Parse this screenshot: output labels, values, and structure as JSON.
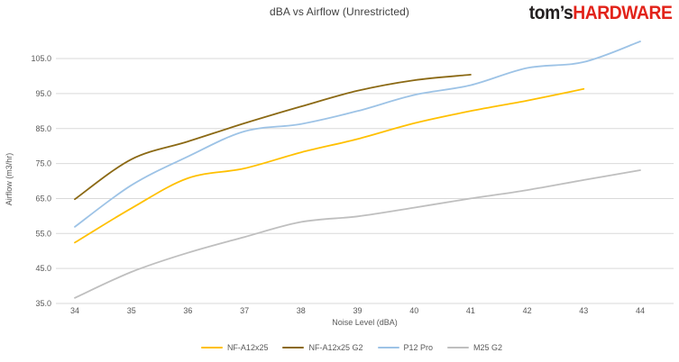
{
  "header": {
    "logo": {
      "prefix": "tom’s",
      "suffix": "HARDWARE",
      "prefix_color": "#231f20",
      "suffix_color": "#e2231a"
    }
  },
  "chart_data": {
    "type": "line",
    "title": "dBA vs Airflow (Unrestricted)",
    "xlabel": "Noise Level (dBA)",
    "ylabel": "Airflow (m3/hr)",
    "x": [
      34,
      35,
      36,
      37,
      38,
      39,
      40,
      41,
      42,
      43,
      44
    ],
    "xtick_labels": [
      "34",
      "35",
      "36",
      "37",
      "38",
      "39",
      "40",
      "41",
      "42",
      "43",
      "44"
    ],
    "xlim": [
      34,
      44
    ],
    "ylim": [
      35,
      110
    ],
    "yticks": [
      35,
      45,
      55,
      65,
      75,
      85,
      95,
      105
    ],
    "ytick_labels": [
      "35.0",
      "45.0",
      "55.0",
      "65.0",
      "75.0",
      "85.0",
      "95.0",
      "105.0"
    ],
    "grid": "horizontal-only",
    "legend_position": "bottom-center",
    "style": "smooth lines, no markers, white background, light gray gridlines",
    "grid_color": "#d9d9d9",
    "axis_text_color": "#595959",
    "title_color": "#404040",
    "series": [
      {
        "name": "NF-A12x25",
        "color": "#ffc000",
        "values": [
          52.4,
          62.2,
          70.8,
          73.6,
          78.2,
          82.0,
          86.5,
          90.0,
          93.0,
          96.3,
          null
        ]
      },
      {
        "name": "NF-A12x25 G2",
        "color": "#8b6914",
        "values": [
          64.8,
          76.2,
          81.3,
          86.5,
          91.3,
          95.8,
          98.8,
          100.4,
          null,
          null,
          null
        ]
      },
      {
        "name": "P12 Pro",
        "color": "#9dc3e6",
        "values": [
          56.9,
          68.8,
          77.0,
          84.2,
          86.3,
          90.0,
          94.6,
          97.4,
          102.3,
          104.0,
          109.9
        ]
      },
      {
        "name": "M25 G2",
        "color": "#bfbfbf",
        "values": [
          36.6,
          44.0,
          49.5,
          54.0,
          58.3,
          59.9,
          62.4,
          65.0,
          67.4,
          70.3,
          73.1
        ]
      }
    ]
  }
}
